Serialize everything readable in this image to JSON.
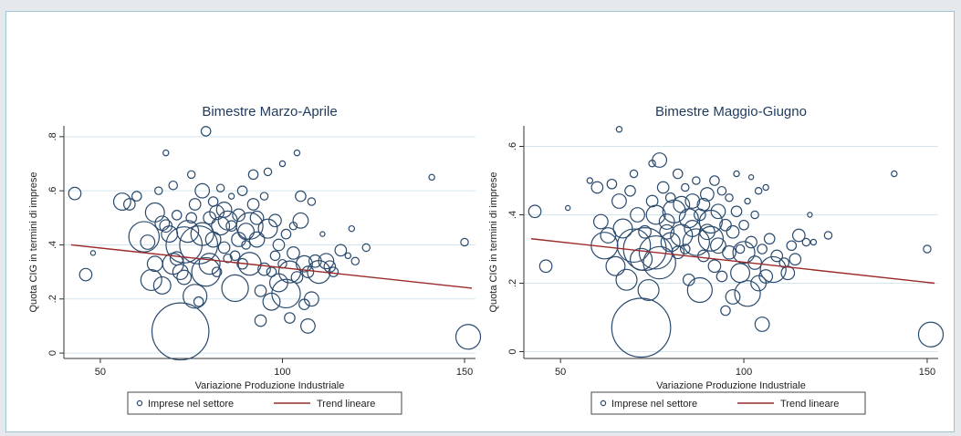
{
  "colors": {
    "plot_bg": "#ffffff",
    "grid": "#d4e7ef",
    "axis": "#333333",
    "marker": "#2a4a6e",
    "trend": "#9b2a2a"
  },
  "chart_data": [
    {
      "type": "scatter",
      "title": "Bimestre Marzo-Aprile",
      "xlabel": "Variazione Produzione Industriale",
      "ylabel": "Quota CIG in termini di imprese",
      "xlim": [
        40,
        153
      ],
      "ylim": [
        -0.02,
        0.84
      ],
      "xticks": [
        "50",
        "100",
        "150"
      ],
      "xtick_values": [
        50,
        100,
        150
      ],
      "yticks": [
        "0",
        ".2",
        ".4",
        ".6",
        ".8"
      ],
      "ytick_values": [
        0,
        0.2,
        0.4,
        0.6,
        0.8
      ],
      "grid": true,
      "legend": {
        "position": "bottom",
        "marker_label": "Imprese nel settore",
        "line_label": "Trend lineare"
      },
      "trend": {
        "x": [
          42,
          152
        ],
        "y": [
          0.4,
          0.24
        ]
      },
      "points": [
        [
          43,
          0.59,
          1.3
        ],
        [
          46,
          0.29,
          1.3
        ],
        [
          48,
          0.37,
          0.5
        ],
        [
          56,
          0.56,
          1.8
        ],
        [
          58,
          0.55,
          1.2
        ],
        [
          60,
          0.58,
          1.0
        ],
        [
          62,
          0.43,
          3.2
        ],
        [
          63,
          0.41,
          1.5
        ],
        [
          64,
          0.27,
          2.2
        ],
        [
          65,
          0.52,
          2.0
        ],
        [
          65,
          0.33,
          1.6
        ],
        [
          66,
          0.6,
          0.8
        ],
        [
          67,
          0.48,
          1.5
        ],
        [
          67,
          0.25,
          1.8
        ],
        [
          68,
          0.74,
          0.6
        ],
        [
          68,
          0.47,
          1.3
        ],
        [
          69,
          0.44,
          1.7
        ],
        [
          70,
          0.62,
          0.9
        ],
        [
          70,
          0.33,
          2.2
        ],
        [
          71,
          0.51,
          1.0
        ],
        [
          71,
          0.35,
          1.4
        ],
        [
          72,
          0.3,
          1.6
        ],
        [
          72,
          0.08,
          6.0
        ],
        [
          73,
          0.4,
          3.8
        ],
        [
          73,
          0.28,
          1.5
        ],
        [
          74,
          0.45,
          2.3
        ],
        [
          75,
          0.5,
          1.1
        ],
        [
          75,
          0.66,
          0.8
        ],
        [
          76,
          0.21,
          2.5
        ],
        [
          76,
          0.55,
          1.2
        ],
        [
          77,
          0.4,
          4.0
        ],
        [
          77,
          0.19,
          1.0
        ],
        [
          78,
          0.44,
          2.4
        ],
        [
          78,
          0.6,
          1.5
        ],
        [
          79,
          0.3,
          3.0
        ],
        [
          79,
          0.82,
          1.0
        ],
        [
          80,
          0.33,
          2.2
        ],
        [
          80,
          0.5,
          1.3
        ],
        [
          81,
          0.56,
          1.0
        ],
        [
          81,
          0.42,
          1.6
        ],
        [
          82,
          0.52,
          1.5
        ],
        [
          82,
          0.3,
          1.0
        ],
        [
          83,
          0.47,
          1.9
        ],
        [
          83,
          0.61,
          0.8
        ],
        [
          84,
          0.39,
          1.2
        ],
        [
          84,
          0.53,
          1.6
        ],
        [
          85,
          0.49,
          2.0
        ],
        [
          85,
          0.35,
          0.9
        ],
        [
          86,
          0.58,
          0.6
        ],
        [
          86,
          0.47,
          1.1
        ],
        [
          87,
          0.24,
          2.8
        ],
        [
          87,
          0.36,
          1.0
        ],
        [
          88,
          0.51,
          1.3
        ],
        [
          88,
          0.42,
          1.5
        ],
        [
          89,
          0.6,
          1.0
        ],
        [
          89,
          0.33,
          1.1
        ],
        [
          90,
          0.45,
          1.7
        ],
        [
          90,
          0.4,
          0.9
        ],
        [
          91,
          0.33,
          2.4
        ],
        [
          91,
          0.47,
          2.8
        ],
        [
          92,
          0.55,
          1.2
        ],
        [
          92,
          0.66,
          1.0
        ],
        [
          93,
          0.5,
          1.4
        ],
        [
          93,
          0.42,
          1.6
        ],
        [
          94,
          0.23,
          1.2
        ],
        [
          94,
          0.12,
          1.2
        ],
        [
          95,
          0.58,
          0.8
        ],
        [
          95,
          0.31,
          1.3
        ],
        [
          96,
          0.46,
          2.0
        ],
        [
          96,
          0.67,
          0.8
        ],
        [
          97,
          0.3,
          1.0
        ],
        [
          97,
          0.19,
          1.8
        ],
        [
          98,
          0.36,
          1.0
        ],
        [
          98,
          0.49,
          1.3
        ],
        [
          99,
          0.4,
          1.2
        ],
        [
          99,
          0.26,
          1.9
        ],
        [
          100,
          0.33,
          0.9
        ],
        [
          100,
          0.7,
          0.6
        ],
        [
          101,
          0.44,
          1.0
        ],
        [
          101,
          0.22,
          3.0
        ],
        [
          102,
          0.3,
          2.3
        ],
        [
          102,
          0.13,
          1.1
        ],
        [
          103,
          0.47,
          0.8
        ],
        [
          103,
          0.37,
          1.3
        ],
        [
          104,
          0.74,
          0.6
        ],
        [
          104,
          0.28,
          1.2
        ],
        [
          105,
          0.49,
          1.6
        ],
        [
          105,
          0.58,
          1.1
        ],
        [
          106,
          0.33,
          1.7
        ],
        [
          106,
          0.18,
          1.1
        ],
        [
          107,
          0.3,
          1.2
        ],
        [
          107,
          0.1,
          1.5
        ],
        [
          108,
          0.56,
          0.8
        ],
        [
          108,
          0.2,
          1.5
        ],
        [
          109,
          0.34,
          1.3
        ],
        [
          110,
          0.3,
          2.4
        ],
        [
          111,
          0.44,
          0.5
        ],
        [
          112,
          0.34,
          1.6
        ],
        [
          113,
          0.32,
          1.2
        ],
        [
          114,
          0.3,
          1.0
        ],
        [
          116,
          0.38,
          1.2
        ],
        [
          118,
          0.36,
          0.6
        ],
        [
          119,
          0.46,
          0.6
        ],
        [
          120,
          0.34,
          0.8
        ],
        [
          123,
          0.39,
          0.8
        ],
        [
          141,
          0.65,
          0.6
        ],
        [
          150,
          0.41,
          0.8
        ],
        [
          151,
          0.06,
          2.6
        ]
      ]
    },
    {
      "type": "scatter",
      "title": "Bimestre Maggio-Giugno",
      "xlabel": "Variazione Produzione Industriale",
      "ylabel": "Quota CIG in termini di imprese",
      "xlim": [
        40,
        153
      ],
      "ylim": [
        -0.02,
        0.66
      ],
      "xticks": [
        "50",
        "100",
        "150"
      ],
      "xtick_values": [
        50,
        100,
        150
      ],
      "yticks": [
        "0",
        ".2",
        ".4",
        ".6"
      ],
      "ytick_values": [
        0,
        0.2,
        0.4,
        0.6
      ],
      "grid": true,
      "legend": {
        "position": "bottom",
        "marker_label": "Imprese nel settore",
        "line_label": "Trend lineare"
      },
      "trend": {
        "x": [
          42,
          152
        ],
        "y": [
          0.33,
          0.2
        ]
      },
      "points": [
        [
          43,
          0.41,
          1.3
        ],
        [
          46,
          0.25,
          1.3
        ],
        [
          52,
          0.42,
          0.5
        ],
        [
          58,
          0.5,
          0.6
        ],
        [
          60,
          0.48,
          1.2
        ],
        [
          61,
          0.38,
          1.5
        ],
        [
          62,
          0.31,
          2.8
        ],
        [
          63,
          0.34,
          1.6
        ],
        [
          64,
          0.49,
          1.0
        ],
        [
          65,
          0.25,
          2.0
        ],
        [
          66,
          0.65,
          0.6
        ],
        [
          66,
          0.44,
          1.5
        ],
        [
          67,
          0.36,
          2.0
        ],
        [
          68,
          0.21,
          2.2
        ],
        [
          69,
          0.47,
          1.1
        ],
        [
          70,
          0.31,
          3.5
        ],
        [
          70,
          0.52,
          0.8
        ],
        [
          71,
          0.4,
          1.5
        ],
        [
          72,
          0.27,
          2.3
        ],
        [
          72,
          0.07,
          6.2
        ],
        [
          73,
          0.35,
          1.3
        ],
        [
          73,
          0.3,
          4.5
        ],
        [
          74,
          0.18,
          2.2
        ],
        [
          75,
          0.44,
          1.2
        ],
        [
          75,
          0.55,
          0.7
        ],
        [
          76,
          0.29,
          3.5
        ],
        [
          76,
          0.4,
          2.0
        ],
        [
          77,
          0.26,
          3.4
        ],
        [
          77,
          0.56,
          1.5
        ],
        [
          78,
          0.48,
          1.2
        ],
        [
          79,
          0.35,
          1.5
        ],
        [
          79,
          0.38,
          1.6
        ],
        [
          80,
          0.45,
          1.0
        ],
        [
          80,
          0.32,
          2.0
        ],
        [
          81,
          0.41,
          2.4
        ],
        [
          82,
          0.52,
          1.0
        ],
        [
          82,
          0.29,
          1.3
        ],
        [
          83,
          0.43,
          1.7
        ],
        [
          83,
          0.34,
          2.3
        ],
        [
          84,
          0.3,
          1.0
        ],
        [
          84,
          0.48,
          0.8
        ],
        [
          85,
          0.39,
          2.0
        ],
        [
          85,
          0.21,
          1.2
        ],
        [
          86,
          0.44,
          1.5
        ],
        [
          86,
          0.36,
          1.7
        ],
        [
          87,
          0.32,
          2.8
        ],
        [
          87,
          0.5,
          0.8
        ],
        [
          88,
          0.4,
          1.2
        ],
        [
          88,
          0.18,
          2.6
        ],
        [
          89,
          0.43,
          1.3
        ],
        [
          89,
          0.28,
          1.2
        ],
        [
          90,
          0.35,
          1.6
        ],
        [
          90,
          0.46,
          1.4
        ],
        [
          91,
          0.33,
          2.6
        ],
        [
          91,
          0.38,
          2.4
        ],
        [
          92,
          0.5,
          1.0
        ],
        [
          92,
          0.25,
          1.3
        ],
        [
          93,
          0.41,
          1.5
        ],
        [
          93,
          0.31,
          1.6
        ],
        [
          94,
          0.47,
          0.9
        ],
        [
          94,
          0.22,
          1.1
        ],
        [
          95,
          0.37,
          1.2
        ],
        [
          95,
          0.12,
          1.0
        ],
        [
          96,
          0.45,
          0.8
        ],
        [
          96,
          0.29,
          1.4
        ],
        [
          97,
          0.35,
          1.3
        ],
        [
          97,
          0.16,
          1.5
        ],
        [
          98,
          0.41,
          1.1
        ],
        [
          98,
          0.52,
          0.6
        ],
        [
          99,
          0.3,
          0.9
        ],
        [
          99,
          0.23,
          2.0
        ],
        [
          100,
          0.37,
          1.0
        ],
        [
          100,
          0.29,
          2.3
        ],
        [
          101,
          0.44,
          0.6
        ],
        [
          101,
          0.17,
          2.7
        ],
        [
          102,
          0.32,
          1.2
        ],
        [
          102,
          0.51,
          0.5
        ],
        [
          103,
          0.26,
          1.4
        ],
        [
          103,
          0.4,
          0.8
        ],
        [
          104,
          0.47,
          0.7
        ],
        [
          104,
          0.2,
          1.6
        ],
        [
          105,
          0.3,
          1.0
        ],
        [
          105,
          0.08,
          1.5
        ],
        [
          106,
          0.48,
          0.6
        ],
        [
          106,
          0.22,
          1.4
        ],
        [
          107,
          0.33,
          1.1
        ],
        [
          108,
          0.24,
          2.7
        ],
        [
          109,
          0.28,
          1.2
        ],
        [
          111,
          0.26,
          1.0
        ],
        [
          112,
          0.23,
          1.4
        ],
        [
          113,
          0.31,
          1.0
        ],
        [
          114,
          0.27,
          1.2
        ],
        [
          115,
          0.34,
          1.3
        ],
        [
          117,
          0.32,
          0.8
        ],
        [
          118,
          0.4,
          0.5
        ],
        [
          119,
          0.32,
          0.6
        ],
        [
          123,
          0.34,
          0.8
        ],
        [
          141,
          0.52,
          0.6
        ],
        [
          150,
          0.3,
          0.8
        ],
        [
          151,
          0.05,
          2.6
        ]
      ]
    }
  ]
}
